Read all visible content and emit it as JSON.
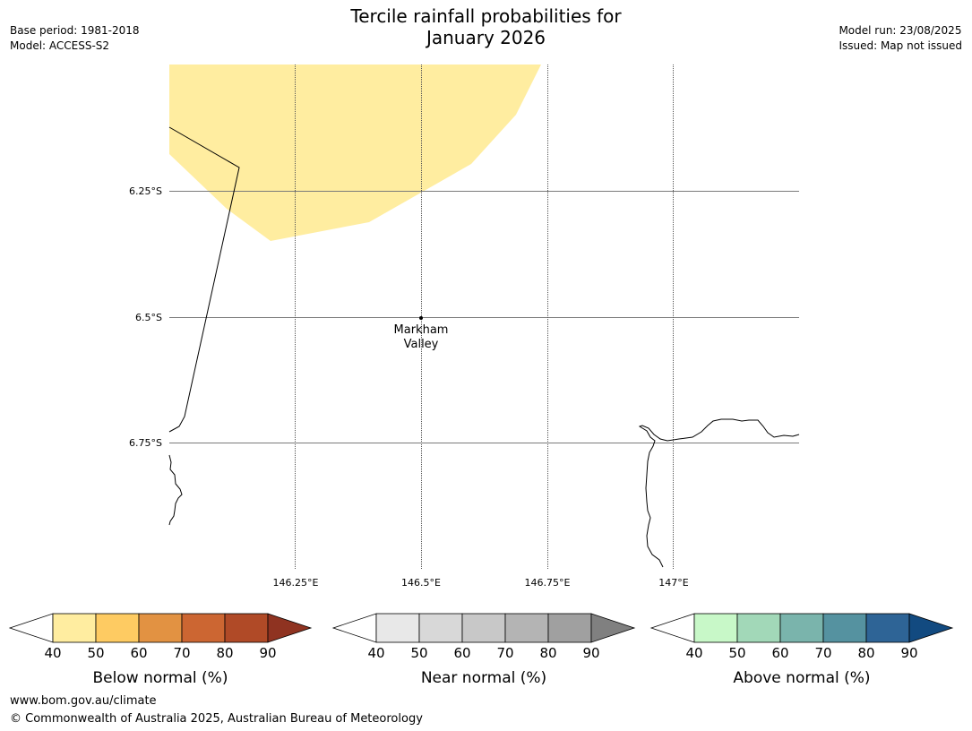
{
  "title_line1": "Tercile rainfall probabilities for",
  "title_line2": "January 2026",
  "meta": {
    "base_period": "Base period: 1981-2018",
    "model": "Model: ACCESS-S2",
    "model_run": "Model run: 23/08/2025",
    "issued": "Issued: Map not issued"
  },
  "map": {
    "lat_labels": [
      "6.25°S",
      "6.5°S",
      "6.75°S"
    ],
    "lon_labels": [
      "146.25°E",
      "146.5°E",
      "146.75°E",
      "147°E"
    ],
    "location": {
      "name_line1": "Markham",
      "name_line2": "Valley"
    }
  },
  "legends": [
    {
      "id": "below",
      "title": "Below normal (%)",
      "ticks": [
        "40",
        "50",
        "60",
        "70",
        "80",
        "90"
      ],
      "colors": [
        "#ffeda0",
        "#fecb62",
        "#e29242",
        "#cc6632",
        "#b04a27",
        "#8f3321"
      ]
    },
    {
      "id": "near",
      "title": "Near normal (%)",
      "ticks": [
        "40",
        "50",
        "60",
        "70",
        "80",
        "90"
      ],
      "colors": [
        "#e8e8e8",
        "#d8d8d8",
        "#c8c8c8",
        "#b4b4b4",
        "#a0a0a0",
        "#808080"
      ]
    },
    {
      "id": "above",
      "title": "Above normal (%)",
      "ticks": [
        "40",
        "50",
        "60",
        "70",
        "80",
        "90"
      ],
      "colors": [
        "#c8f8c8",
        "#a2d8b8",
        "#7ab4ac",
        "#5592a0",
        "#2e6496",
        "#124a80"
      ]
    }
  ],
  "footer": {
    "url": "www.bom.gov.au/climate",
    "copyright": "© Commonwealth of Australia 2025, Australian Bureau of Meteorology"
  }
}
